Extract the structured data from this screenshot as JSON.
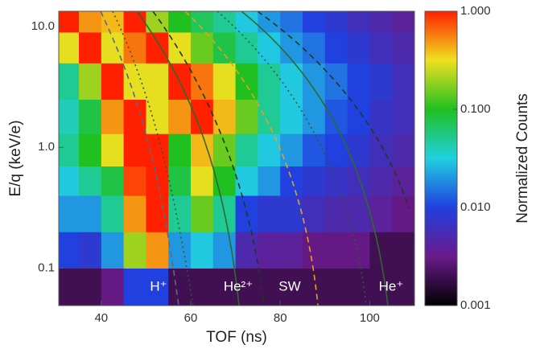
{
  "chart_data": {
    "type": "heatmap",
    "xlabel": "TOF (ns)",
    "ylabel": "E/q (keV/e)",
    "colorbar_label": "Normalized Counts",
    "xlim": [
      30.5,
      110
    ],
    "xticks": [
      40,
      60,
      80,
      100
    ],
    "ylim": [
      0.049,
      13.4
    ],
    "yscale": "log",
    "yticks": [
      {
        "value": 10,
        "label": "10.0"
      },
      {
        "value": 1,
        "label": "1.0"
      },
      0.1
    ],
    "clim": [
      0.001,
      1
    ],
    "cscale": "log",
    "cticks": [
      {
        "value": 1,
        "label": "1.000"
      },
      {
        "value": 0.1,
        "label": "0.100"
      },
      {
        "value": 0.01,
        "label": "0.010"
      },
      {
        "value": 0.001,
        "label": "0.001"
      }
    ],
    "colormap": [
      "#000000",
      "#6a1a8a",
      "#2040e0",
      "#20d0e0",
      "#20c020",
      "#f0e020",
      "#ff2000"
    ],
    "x_edges": [
      30.5,
      35,
      40,
      45,
      50,
      55,
      60,
      65,
      70,
      75,
      80,
      85,
      90,
      95,
      100,
      105,
      110
    ],
    "y_edges": [
      0.049,
      0.1,
      0.2,
      0.4,
      0.7,
      1.3,
      2.5,
      5,
      9,
      13.4
    ],
    "z": [
      [
        0.002,
        0.002,
        0.003,
        0.01,
        0.01,
        0.002,
        0.002,
        0.002,
        0.002,
        0.002,
        0.002,
        0.002,
        0.002,
        0.002,
        0.002,
        0.002
      ],
      [
        0.01,
        0.008,
        0.02,
        0.2,
        0.5,
        0.02,
        0.03,
        0.02,
        0.005,
        0.004,
        0.004,
        0.003,
        0.003,
        0.003,
        0.002,
        0.002
      ],
      [
        0.02,
        0.02,
        0.05,
        0.5,
        1,
        0.05,
        0.15,
        0.05,
        0.01,
        0.008,
        0.008,
        0.006,
        0.005,
        0.005,
        0.004,
        0.003
      ],
      [
        0.03,
        0.05,
        0.08,
        0.8,
        1,
        0.08,
        0.3,
        0.1,
        0.03,
        0.02,
        0.01,
        0.008,
        0.007,
        0.006,
        0.005,
        0.004
      ],
      [
        0.05,
        0.1,
        0.3,
        1,
        1,
        0.1,
        0.4,
        0.15,
        0.05,
        0.03,
        0.02,
        0.012,
        0.01,
        0.008,
        0.006,
        0.005
      ],
      [
        0.04,
        0.08,
        0.5,
        1,
        0.3,
        0.5,
        1,
        0.4,
        0.15,
        0.05,
        0.03,
        0.02,
        0.012,
        0.01,
        0.007,
        0.006
      ],
      [
        0.05,
        0.2,
        1,
        0.3,
        0.3,
        1,
        0.6,
        0.3,
        0.1,
        0.05,
        0.03,
        0.02,
        0.015,
        0.01,
        0.008,
        0.006
      ],
      [
        0.3,
        1,
        0.3,
        0.6,
        1,
        0.3,
        0.15,
        0.08,
        0.05,
        0.03,
        0.02,
        0.015,
        0.01,
        0.008,
        0.006,
        0.005
      ],
      [
        1,
        0.5,
        0.4,
        1,
        0.2,
        0.1,
        0.07,
        0.05,
        0.03,
        0.02,
        0.015,
        0.01,
        0.008,
        0.006,
        0.005,
        0.004
      ]
    ],
    "annotations": [
      "H⁺",
      "He²⁺",
      "SW",
      "He⁺"
    ]
  }
}
